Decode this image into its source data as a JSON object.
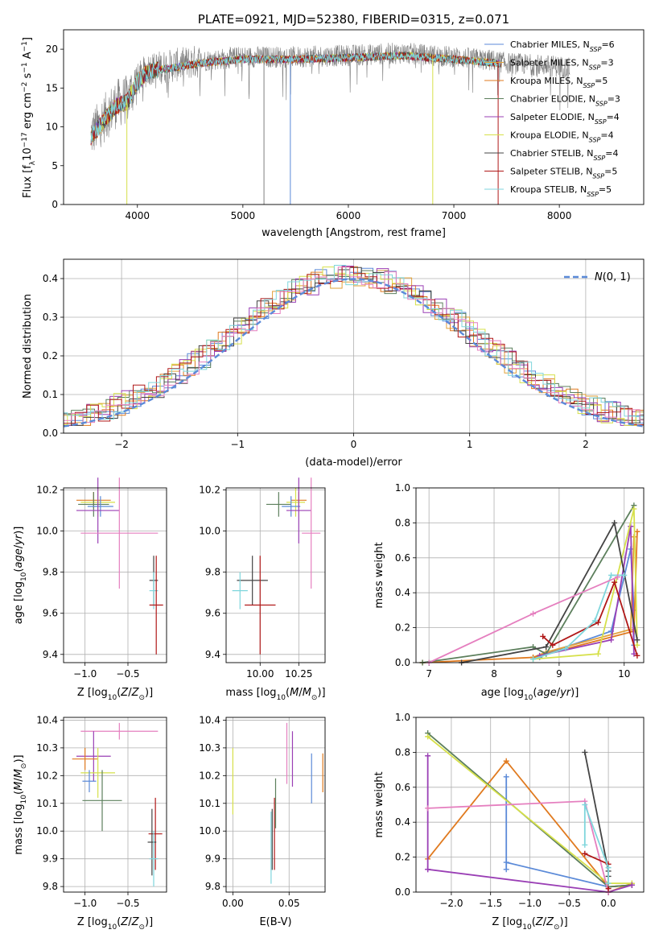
{
  "colors": {
    "Chabrier MILES": "#5b8ad8",
    "Salpeter MILES": "#e2a13a",
    "Kroupa MILES": "#e07a1f",
    "Chabrier ELODIE": "#5c7f5c",
    "Salpeter ELODIE": "#9a3fb5",
    "Kroupa ELODIE": "#d6e04a",
    "Chabrier STELIB": "#444444",
    "Salpeter STELIB": "#b01818",
    "Kroupa STELIB": "#7fd6dc",
    "pink": "#e57fbf",
    "gray": "#808080",
    "dashed": "#5b8ad8"
  },
  "chart_data": [
    {
      "id": "spectrum",
      "type": "line",
      "title": "PLATE=0921, MJD=52380, FIBERID=0315, z=0.071",
      "xlabel": "wavelength [Angstrom, rest frame]",
      "ylabel": "Flux [fλ10⁻¹⁷ erg cm⁻² s⁻¹ A⁻¹]",
      "xlim": [
        3300,
        8800
      ],
      "ylim": [
        0,
        22.5
      ],
      "xticks": [
        "4000",
        "5000",
        "6000",
        "7000",
        "8000"
      ],
      "yticks": [
        "0",
        "5",
        "10",
        "15",
        "20"
      ],
      "legend_position": "top-right",
      "legend": [
        {
          "pre": "Chabrier MILES, N",
          "sub": "SSP",
          "post": "=6"
        },
        {
          "pre": "Salpeter MILES, N",
          "sub": "SSP",
          "post": "=3"
        },
        {
          "pre": "Kroupa MILES, N",
          "sub": "SSP",
          "post": "=5"
        },
        {
          "pre": "Chabrier ELODIE, N",
          "sub": "SSP",
          "post": "=3"
        },
        {
          "pre": "Salpeter ELODIE, N",
          "sub": "SSP",
          "post": "=4"
        },
        {
          "pre": "Kroupa ELODIE, N",
          "sub": "SSP",
          "post": "=4"
        },
        {
          "pre": "Chabrier STELIB, N",
          "sub": "SSP",
          "post": "=4"
        },
        {
          "pre": "Salpeter STELIB, N",
          "sub": "SSP",
          "post": "=5"
        },
        {
          "pre": "Kroupa STELIB, N",
          "sub": "SSP",
          "post": "=5"
        }
      ],
      "continuum": [
        [
          3560,
          9
        ],
        [
          3650,
          10.5
        ],
        [
          3800,
          13
        ],
        [
          3900,
          13.5
        ],
        [
          4000,
          16
        ],
        [
          4100,
          17.5
        ],
        [
          4300,
          17.8
        ],
        [
          4600,
          18.5
        ],
        [
          5000,
          19
        ],
        [
          5500,
          19
        ],
        [
          6000,
          19.2
        ],
        [
          6500,
          19.5
        ],
        [
          7000,
          19
        ],
        [
          7400,
          18.5
        ],
        [
          7500,
          18.2
        ],
        [
          8000,
          17.8
        ],
        [
          8100,
          17.5
        ]
      ],
      "data_xrange": [
        3560,
        8100
      ],
      "model_xrange": [
        3560,
        7450
      ],
      "spikes": [
        [
          3900,
          0
        ],
        [
          5200,
          0
        ],
        [
          5450,
          0
        ],
        [
          6800,
          0
        ],
        [
          7420,
          0
        ]
      ]
    },
    {
      "id": "residuals",
      "type": "histogram",
      "xlabel": "(data-model)/error",
      "ylabel": "Normed distribution",
      "xlim": [
        -2.5,
        2.5
      ],
      "ylim": [
        0,
        0.45
      ],
      "xticks": [
        "−2",
        "−1",
        "0",
        "1",
        "2"
      ],
      "yticks": [
        "0.0",
        "0.1",
        "0.2",
        "0.3",
        "0.4"
      ],
      "legend": "N(0,1)",
      "legend_position": "top-right",
      "bin_width": 0.1
    },
    {
      "id": "age_vs_Z",
      "type": "errorbar",
      "xlabel": "Z [log10(Z/Z⊙)]",
      "ylabel": "age  [log10(age/yr)]",
      "xlim": [
        -1.25,
        -0.05
      ],
      "ylim": [
        9.36,
        10.21
      ],
      "xticks": [
        "−1.0",
        "−0.5"
      ],
      "yticks": [
        "9.4",
        "9.6",
        "9.8",
        "10.0",
        "10.2"
      ],
      "points": [
        {
          "s": "Kroupa MILES",
          "x": -0.9,
          "xerr": 0.2,
          "y": 10.15,
          "yerr": 0.04
        },
        {
          "s": "Kroupa ELODIE",
          "x": -0.85,
          "xerr": 0.2,
          "y": 10.14,
          "yerr": 0.07
        },
        {
          "s": "Chabrier ELODIE",
          "x": -0.9,
          "xerr": 0.18,
          "y": 10.13,
          "yerr": 0.06
        },
        {
          "s": "Chabrier MILES",
          "x": -0.82,
          "xerr": 0.15,
          "y": 10.12,
          "yerr": 0.05
        },
        {
          "s": "Salpeter ELODIE",
          "x": -0.85,
          "xerr": 0.25,
          "y": 10.1,
          "yerr": 0.16
        },
        {
          "s": "pink",
          "x": -0.6,
          "xerr": 0.45,
          "y": 9.99,
          "yerr": 0.27
        },
        {
          "s": "Chabrier STELIB",
          "x": -0.2,
          "xerr": 0.05,
          "y": 9.76,
          "yerr": 0.12
        },
        {
          "s": "Kroupa STELIB",
          "x": -0.2,
          "xerr": 0.05,
          "y": 9.71,
          "yerr": 0.09
        },
        {
          "s": "Salpeter STELIB",
          "x": -0.17,
          "xerr": 0.08,
          "y": 9.64,
          "yerr": 0.24
        }
      ]
    },
    {
      "id": "age_vs_mass",
      "type": "errorbar",
      "xlabel": "mass [log10(M/M⊙)]",
      "ylabel": "",
      "xlim": [
        9.78,
        10.42
      ],
      "ylim": [
        9.36,
        10.21
      ],
      "xticks": [
        "10.00",
        "10.25"
      ],
      "yticks": [
        "9.4",
        "9.6",
        "9.8",
        "10.0",
        "10.2"
      ],
      "points": [
        {
          "s": "Kroupa MILES",
          "x": 10.25,
          "xerr": 0.05,
          "y": 10.15,
          "yerr": 0.04
        },
        {
          "s": "Kroupa ELODIE",
          "x": 10.23,
          "xerr": 0.06,
          "y": 10.14,
          "yerr": 0.07
        },
        {
          "s": "Chabrier ELODIE",
          "x": 10.12,
          "xerr": 0.08,
          "y": 10.13,
          "yerr": 0.06
        },
        {
          "s": "Chabrier MILES",
          "x": 10.2,
          "xerr": 0.06,
          "y": 10.12,
          "yerr": 0.05
        },
        {
          "s": "Salpeter ELODIE",
          "x": 10.25,
          "xerr": 0.08,
          "y": 10.1,
          "yerr": 0.16
        },
        {
          "s": "pink",
          "x": 10.33,
          "xerr": 0.06,
          "y": 9.99,
          "yerr": 0.27
        },
        {
          "s": "Chabrier STELIB",
          "x": 9.95,
          "xerr": 0.1,
          "y": 9.76,
          "yerr": 0.12
        },
        {
          "s": "Kroupa STELIB",
          "x": 9.87,
          "xerr": 0.05,
          "y": 9.71,
          "yerr": 0.09
        },
        {
          "s": "Salpeter STELIB",
          "x": 10.0,
          "xerr": 0.1,
          "y": 9.64,
          "yerr": 0.24
        }
      ]
    },
    {
      "id": "weight_vs_age",
      "type": "line",
      "xlabel": "age  [log10(age/yr)]",
      "ylabel": "mass weight",
      "xlim": [
        6.8,
        10.3
      ],
      "ylim": [
        0,
        1
      ],
      "xticks": [
        "7",
        "8",
        "9",
        "10"
      ],
      "yticks": [
        "0.0",
        "0.2",
        "0.4",
        "0.6",
        "0.8",
        "1.0"
      ],
      "series": [
        {
          "s": "Chabrier MILES",
          "x": [
            8.7,
            8.8,
            9.8,
            10.1,
            10.15,
            10.15
          ],
          "y": [
            0.03,
            0.05,
            0.18,
            0.65,
            0.3,
            0.1
          ]
        },
        {
          "s": "Salpeter MILES",
          "x": [
            8.6,
            8.8,
            10.1,
            10.15
          ],
          "y": [
            0.03,
            0.06,
            0.19,
            0.72
          ]
        },
        {
          "s": "Kroupa MILES",
          "x": [
            6.9,
            8.6,
            10.15,
            10.2
          ],
          "y": [
            0.0,
            0.03,
            0.18,
            0.75
          ]
        },
        {
          "s": "Chabrier ELODIE",
          "x": [
            6.9,
            8.6,
            8.8,
            10.15
          ],
          "y": [
            0.0,
            0.09,
            0.05,
            0.9
          ]
        },
        {
          "s": "Salpeter ELODIE",
          "x": [
            8.7,
            9.8,
            10.1,
            10.15
          ],
          "y": [
            0.04,
            0.13,
            0.78,
            0.05
          ]
        },
        {
          "s": "Kroupa ELODIE",
          "x": [
            8.6,
            9.6,
            10.15,
            10.2
          ],
          "y": [
            0.02,
            0.05,
            0.88,
            0.1
          ]
        },
        {
          "s": "Chabrier STELIB",
          "x": [
            7.5,
            8.8,
            9.85,
            10.2
          ],
          "y": [
            0.0,
            0.09,
            0.8,
            0.13
          ]
        },
        {
          "s": "Salpeter STELIB",
          "x": [
            8.75,
            8.9,
            9.6,
            9.85,
            10.2
          ],
          "y": [
            0.15,
            0.1,
            0.23,
            0.46,
            0.04
          ]
        },
        {
          "s": "Kroupa STELIB",
          "x": [
            8.6,
            9.1,
            9.55,
            9.8,
            10.0
          ],
          "y": [
            0.02,
            0.08,
            0.24,
            0.5,
            0.5
          ]
        },
        {
          "s": "pink",
          "x": [
            7.0,
            8.6,
            9.9
          ],
          "y": [
            0.0,
            0.28,
            0.49
          ]
        }
      ]
    },
    {
      "id": "mass_vs_Z",
      "type": "errorbar",
      "xlabel": "Z [log10(Z/Z⊙)]",
      "ylabel": "mass [log10(M/M⊙)]",
      "xlim": [
        -1.25,
        -0.05
      ],
      "ylim": [
        9.78,
        10.41
      ],
      "xticks": [
        "−1.0",
        "−0.5"
      ],
      "yticks": [
        "9.8",
        "9.9",
        "10.0",
        "10.1",
        "10.2",
        "10.3",
        "10.4"
      ],
      "points": [
        {
          "s": "pink",
          "x": -0.6,
          "xerr": 0.45,
          "y": 10.36,
          "yerr": 0.03
        },
        {
          "s": "Salpeter ELODIE",
          "x": -0.9,
          "xerr": 0.2,
          "y": 10.27,
          "yerr": 0.09
        },
        {
          "s": "Kroupa MILES",
          "x": -1.0,
          "xerr": 0.15,
          "y": 10.26,
          "yerr": 0.04
        },
        {
          "s": "Kroupa ELODIE",
          "x": -0.85,
          "xerr": 0.2,
          "y": 10.21,
          "yerr": 0.09
        },
        {
          "s": "Chabrier MILES",
          "x": -0.95,
          "xerr": 0.08,
          "y": 10.18,
          "yerr": 0.04
        },
        {
          "s": "Chabrier ELODIE",
          "x": -0.8,
          "xerr": 0.23,
          "y": 10.11,
          "yerr": 0.11
        },
        {
          "s": "Salpeter STELIB",
          "x": -0.18,
          "xerr": 0.08,
          "y": 9.99,
          "yerr": 0.13
        },
        {
          "s": "Chabrier STELIB",
          "x": -0.22,
          "xerr": 0.05,
          "y": 9.96,
          "yerr": 0.12
        },
        {
          "s": "Kroupa STELIB",
          "x": -0.2,
          "xerr": 0.05,
          "y": 9.9,
          "yerr": 0.1
        }
      ]
    },
    {
      "id": "mass_vs_ebv",
      "type": "errorbar",
      "xlabel": "E(B-V)",
      "ylabel": "",
      "xlim": [
        -0.006,
        0.082
      ],
      "ylim": [
        9.78,
        10.41
      ],
      "xticks": [
        "0.00",
        "0.05"
      ],
      "yticks": [
        "9.8",
        "9.9",
        "10.0",
        "10.1",
        "10.2",
        "10.3",
        "10.4"
      ],
      "points": [
        {
          "s": "Kroupa ELODIE",
          "x": 0.0,
          "y": 10.18,
          "yerr": 0.12
        },
        {
          "s": "Kroupa STELIB",
          "x": 0.034,
          "y": 9.94,
          "yerr": 0.13
        },
        {
          "s": "Chabrier STELIB",
          "x": 0.035,
          "y": 9.97,
          "yerr": 0.11
        },
        {
          "s": "Salpeter STELIB",
          "x": 0.037,
          "y": 9.99,
          "yerr": 0.13
        },
        {
          "s": "Chabrier ELODIE",
          "x": 0.038,
          "y": 10.1,
          "yerr": 0.09
        },
        {
          "s": "pink",
          "x": 0.048,
          "y": 10.28,
          "yerr": 0.11
        },
        {
          "s": "Salpeter ELODIE",
          "x": 0.053,
          "y": 10.26,
          "yerr": 0.1
        },
        {
          "s": "Chabrier MILES",
          "x": 0.07,
          "y": 10.19,
          "yerr": 0.09
        },
        {
          "s": "Kroupa MILES",
          "x": 0.08,
          "y": 10.21,
          "yerr": 0.07
        }
      ]
    },
    {
      "id": "weight_vs_Z",
      "type": "line",
      "xlabel": "Z [log10(Z/Z⊙)]",
      "ylabel": "mass weight",
      "xlim": [
        -2.45,
        0.45
      ],
      "ylim": [
        0,
        1
      ],
      "xticks": [
        "−2.0",
        "−1.5",
        "−1.0",
        "−0.5",
        "0.0"
      ],
      "yticks": [
        "0.0",
        "0.2",
        "0.4",
        "0.6",
        "0.8",
        "1.0"
      ],
      "series": [
        {
          "s": "Chabrier MILES",
          "x": [
            -1.3,
            -1.3,
            -1.3,
            0.0,
            0.3
          ],
          "y": [
            0.13,
            0.66,
            0.17,
            0.03,
            0.04
          ]
        },
        {
          "s": "Kroupa MILES",
          "x": [
            -2.3,
            -1.3,
            0.0,
            0.3
          ],
          "y": [
            0.19,
            0.75,
            0.03,
            0.04
          ]
        },
        {
          "s": "Salpeter MILES",
          "x": [
            0.0,
            0.3
          ],
          "y": [
            0.0,
            0.05
          ]
        },
        {
          "s": "Chabrier ELODIE",
          "x": [
            -2.3,
            0.0,
            0.3
          ],
          "y": [
            0.91,
            0.03,
            0.04
          ]
        },
        {
          "s": "Kroupa ELODIE",
          "x": [
            -2.3,
            0.0,
            0.3
          ],
          "y": [
            0.89,
            0.05,
            0.05
          ]
        },
        {
          "s": "Salpeter ELODIE",
          "x": [
            -2.3,
            -2.3,
            -2.3,
            0.0,
            0.3
          ],
          "y": [
            0.13,
            0.78,
            0.13,
            0.0,
            0.04
          ]
        },
        {
          "s": "pink",
          "x": [
            -2.3,
            -0.3,
            0.0
          ],
          "y": [
            0.48,
            0.52,
            0.0
          ]
        },
        {
          "s": "Chabrier STELIB",
          "x": [
            -0.3,
            0.0,
            0.0
          ],
          "y": [
            0.8,
            0.12,
            0.09
          ]
        },
        {
          "s": "Salpeter STELIB",
          "x": [
            -0.3,
            0.0,
            0.0
          ],
          "y": [
            0.22,
            0.16,
            0.02
          ]
        },
        {
          "s": "Kroupa STELIB",
          "x": [
            -0.3,
            -0.3,
            0.0,
            0.0
          ],
          "y": [
            0.27,
            0.5,
            0.14,
            0.05
          ]
        }
      ]
    }
  ]
}
